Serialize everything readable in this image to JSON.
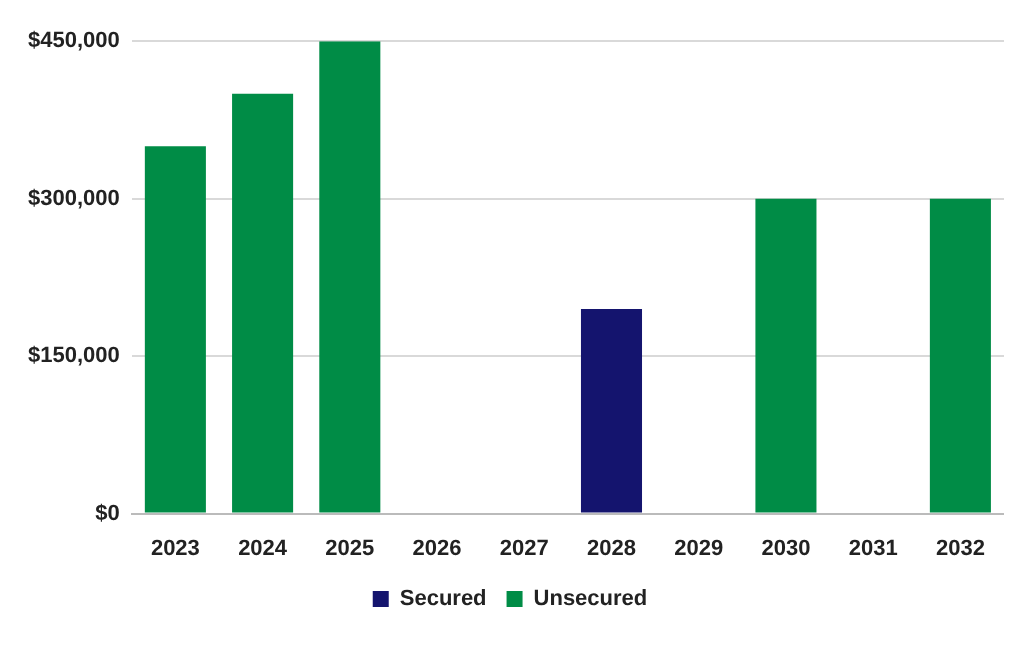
{
  "chart_data": {
    "type": "bar",
    "stacked": true,
    "categories": [
      "2023",
      "2024",
      "2025",
      "2026",
      "2027",
      "2028",
      "2029",
      "2030",
      "2031",
      "2032"
    ],
    "series": [
      {
        "name": "Secured",
        "color": "#14146e",
        "values": [
          null,
          null,
          null,
          null,
          null,
          195000,
          null,
          null,
          null,
          null
        ]
      },
      {
        "name": "Unsecured",
        "color": "#008c46",
        "values": [
          350000,
          400000,
          450000,
          null,
          null,
          null,
          null,
          300000,
          null,
          300000
        ]
      }
    ],
    "ylim": [
      0,
      450000
    ],
    "yticks": [
      {
        "value": 0,
        "label": "$0"
      },
      {
        "value": 150000,
        "label": "$150,000"
      },
      {
        "value": 300000,
        "label": "$300,000"
      },
      {
        "value": 450000,
        "label": "$450,000"
      }
    ],
    "grid": "y",
    "legend": "bottom"
  }
}
